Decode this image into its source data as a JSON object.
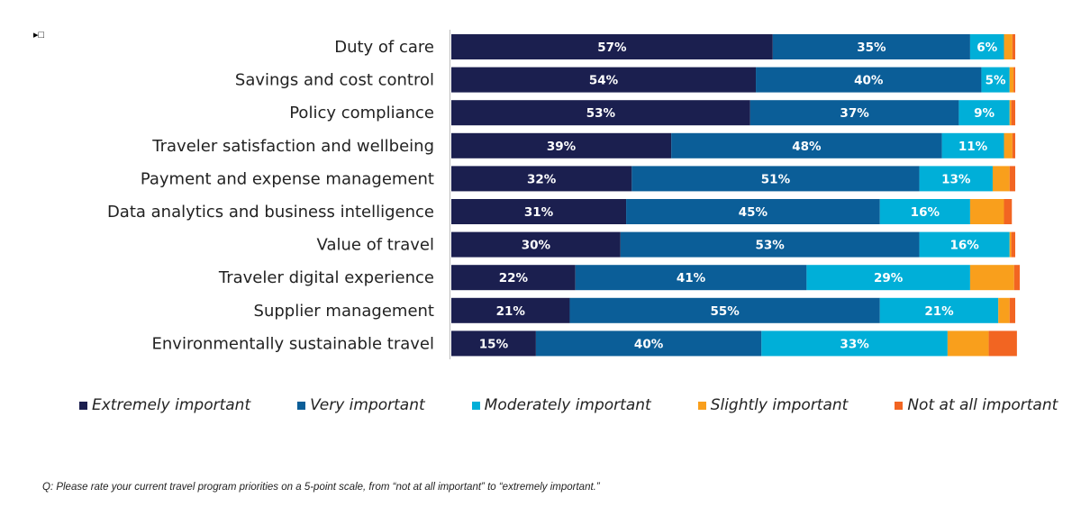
{
  "chart_data": {
    "type": "bar",
    "orientation": "horizontal",
    "stacked": true,
    "categories": [
      "Duty of care",
      "Savings and cost control",
      "Policy compliance",
      "Traveler satisfaction and wellbeing",
      "Payment and expense management",
      "Data analytics and business intelligence",
      "Value of travel",
      "Traveler digital experience",
      "Supplier management",
      "Environmentally sustainable travel"
    ],
    "series": [
      {
        "name": "Extremely important",
        "color": "#1b1f4f",
        "values": [
          57,
          54,
          53,
          39,
          32,
          31,
          30,
          22,
          21,
          15
        ],
        "labeled": true
      },
      {
        "name": "Very important",
        "color": "#0b5e98",
        "values": [
          35,
          40,
          37,
          48,
          51,
          45,
          53,
          41,
          55,
          40
        ],
        "labeled": true
      },
      {
        "name": "Moderately important",
        "color": "#00afd8",
        "values": [
          6,
          5,
          9,
          11,
          13,
          16,
          16,
          29,
          21,
          33
        ],
        "labeled": true
      },
      {
        "name": "Slightly important",
        "color": "#f99f1c",
        "values": [
          1.5,
          0.7,
          0.3,
          1.5,
          3,
          6,
          0.3,
          7.8,
          2,
          7.3
        ],
        "labeled": false
      },
      {
        "name": "Not at all important",
        "color": "#f26522",
        "values": [
          0.5,
          0.3,
          0.7,
          0.5,
          1,
          1.4,
          0.7,
          1,
          1,
          5
        ],
        "labeled": false
      }
    ],
    "xlim": [
      0,
      100
    ],
    "grid": false,
    "legend": "bottom",
    "label_suffix": "%"
  },
  "footnote": "Q: Please rate your current travel program priorities on a 5-point scale, from “not at all important” to “extremely important.”"
}
